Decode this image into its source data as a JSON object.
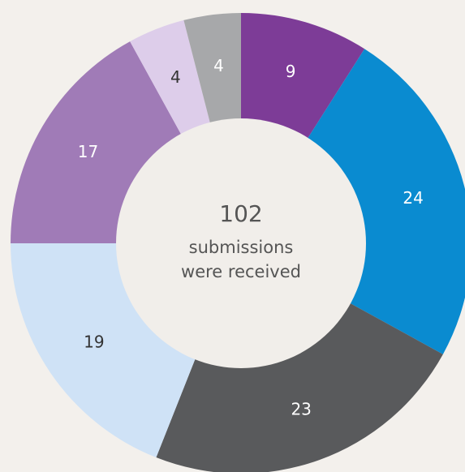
{
  "chart_data": {
    "type": "pie",
    "values": [
      9,
      24,
      23,
      19,
      17,
      4,
      4
    ],
    "colors": [
      "#7d3c97",
      "#0a8bd0",
      "#595a5c",
      "#cfe2f6",
      "#a07bb7",
      "#ddcdea",
      "#a7a8aa"
    ],
    "total": 102,
    "center_lines": [
      "submissions",
      "were received"
    ]
  }
}
